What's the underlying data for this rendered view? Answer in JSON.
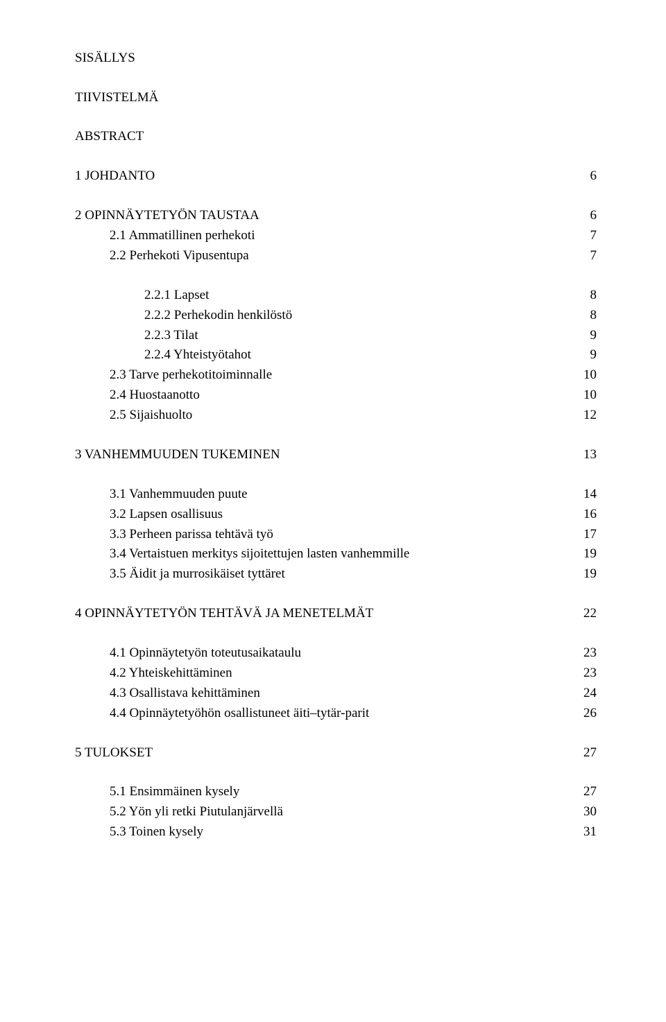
{
  "title": "SISÄLLYS",
  "front": [
    "TIIVISTELMÄ",
    "ABSTRACT"
  ],
  "toc": [
    {
      "level": 0,
      "label": "1  JOHDANTO",
      "page": "6"
    },
    {
      "level": 0,
      "label": "2  OPINNÄYTETYÖN TAUSTAA",
      "page": "6"
    },
    {
      "level": 1,
      "label": "2.1  Ammatillinen perhekoti",
      "page": "7"
    },
    {
      "level": 1,
      "label": "2.2  Perhekoti Vipusentupa",
      "page": "7"
    },
    {
      "level": 2,
      "label": "2.2.1  Lapset",
      "page": "8"
    },
    {
      "level": 2,
      "label": "2.2.2  Perhekodin henkilöstö",
      "page": "8"
    },
    {
      "level": 2,
      "label": "2.2.3  Tilat",
      "page": "9"
    },
    {
      "level": 2,
      "label": "2.2.4  Yhteistyötahot",
      "page": "9"
    },
    {
      "level": 1,
      "label": "2.3  Tarve perhekotitoiminnalle",
      "page": "10"
    },
    {
      "level": 1,
      "label": "2.4  Huostaanotto",
      "page": "10"
    },
    {
      "level": 1,
      "label": "2.5  Sijaishuolto",
      "page": "12"
    },
    {
      "level": 0,
      "label": "3  VANHEMMUUDEN TUKEMINEN",
      "page": "13"
    },
    {
      "level": 1,
      "label": "3.1  Vanhemmuuden puute",
      "page": "14"
    },
    {
      "level": 1,
      "label": "3.2  Lapsen osallisuus",
      "page": "16"
    },
    {
      "level": 1,
      "label": "3.3  Perheen parissa tehtävä työ",
      "page": "17"
    },
    {
      "level": 1,
      "label": "3.4  Vertaistuen merkitys sijoitettujen lasten vanhemmille",
      "page": "19"
    },
    {
      "level": 1,
      "label": "3.5  Äidit ja murrosikäiset tyttäret",
      "page": "19"
    },
    {
      "level": 0,
      "label": "4  OPINNÄYTETYÖN TEHTÄVÄ JA MENETELMÄT",
      "page": "22"
    },
    {
      "level": 1,
      "label": "4.1  Opinnäytetyön toteutusaikataulu",
      "page": "23"
    },
    {
      "level": 1,
      "label": "4.2  Yhteiskehittäminen",
      "page": "23"
    },
    {
      "level": 1,
      "label": "4.3  Osallistava kehittäminen",
      "page": "24"
    },
    {
      "level": 1,
      "label": "4.4  Opinnäytetyöhön osallistuneet äiti–tytär-parit",
      "page": "26"
    },
    {
      "level": 0,
      "label": "5  TULOKSET",
      "page": "27"
    },
    {
      "level": 1,
      "label": "5.1  Ensimmäinen kysely",
      "page": "27"
    },
    {
      "level": 1,
      "label": "5.2  Yön yli retki Piutulanjärvellä",
      "page": "30"
    },
    {
      "level": 1,
      "label": "5.3  Toinen kysely",
      "page": "31"
    }
  ],
  "groups": [
    {
      "start": 0,
      "end": 0
    },
    {
      "start": 1,
      "end": 3
    },
    {
      "start": 4,
      "end": 10
    },
    {
      "start": 11,
      "end": 11
    },
    {
      "start": 12,
      "end": 16
    },
    {
      "start": 17,
      "end": 17
    },
    {
      "start": 18,
      "end": 21
    },
    {
      "start": 22,
      "end": 22
    },
    {
      "start": 23,
      "end": 25
    }
  ],
  "colors": {
    "text": "#000000",
    "background": "#ffffff"
  },
  "typography": {
    "font_family": "Times New Roman",
    "font_size_pt": 12,
    "line_height": 1.5
  }
}
